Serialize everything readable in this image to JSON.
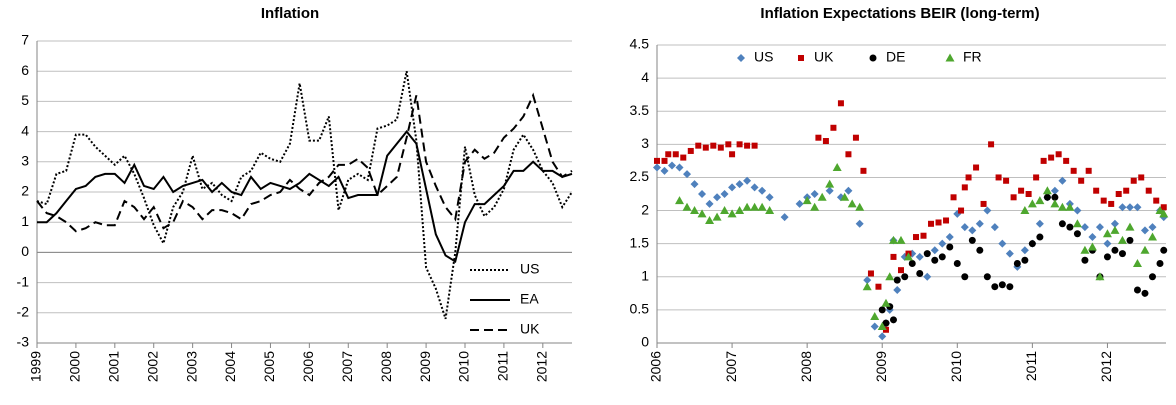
{
  "chart_data": [
    {
      "type": "line",
      "title": "Inflation",
      "x": [
        1999,
        1999.25,
        1999.5,
        1999.75,
        2000,
        2000.25,
        2000.5,
        2000.75,
        2001,
        2001.25,
        2001.5,
        2001.75,
        2002,
        2002.25,
        2002.5,
        2002.75,
        2003,
        2003.25,
        2003.5,
        2003.75,
        2004,
        2004.25,
        2004.5,
        2004.75,
        2005,
        2005.25,
        2005.5,
        2005.75,
        2006,
        2006.25,
        2006.5,
        2006.75,
        2007,
        2007.25,
        2007.5,
        2007.75,
        2008,
        2008.25,
        2008.5,
        2008.75,
        2009,
        2009.25,
        2009.5,
        2009.75,
        2010,
        2010.25,
        2010.5,
        2010.75,
        2011,
        2011.25,
        2011.5,
        2011.75,
        2012,
        2012.25,
        2012.5,
        2012.75
      ],
      "series": [
        {
          "name": "US",
          "color": "#000000",
          "dash": "dotted",
          "values": [
            1.7,
            1.6,
            2.6,
            2.7,
            3.9,
            3.9,
            3.5,
            3.2,
            2.9,
            3.2,
            2.6,
            1.8,
            0.9,
            0.3,
            1.5,
            2.0,
            3.2,
            2.1,
            2.3,
            1.9,
            1.7,
            2.5,
            2.7,
            3.3,
            3.1,
            3.0,
            3.6,
            5.6,
            3.7,
            3.7,
            4.5,
            1.4,
            2.4,
            2.6,
            2.4,
            4.1,
            4.2,
            4.4,
            6.0,
            3.7,
            -0.5,
            -1.2,
            -2.2,
            0.0,
            3.5,
            1.9,
            1.2,
            1.5,
            2.1,
            3.4,
            3.9,
            3.4,
            2.7,
            2.3,
            1.5,
            2.0
          ]
        },
        {
          "name": "EA",
          "color": "#000000",
          "dash": "solid",
          "values": [
            1.0,
            1.0,
            1.3,
            1.7,
            2.1,
            2.2,
            2.5,
            2.6,
            2.6,
            2.3,
            2.9,
            2.2,
            2.1,
            2.5,
            2.0,
            2.2,
            2.3,
            2.4,
            2.0,
            2.3,
            2.0,
            1.9,
            2.5,
            2.1,
            2.3,
            2.2,
            2.1,
            2.3,
            2.6,
            2.4,
            2.2,
            2.5,
            1.8,
            1.9,
            1.9,
            1.9,
            3.2,
            3.6,
            4.0,
            3.6,
            2.1,
            0.6,
            -0.1,
            -0.3,
            1.0,
            1.6,
            1.6,
            1.9,
            2.2,
            2.7,
            2.7,
            3.0,
            2.7,
            2.7,
            2.5,
            2.6
          ]
        },
        {
          "name": "UK",
          "color": "#000000",
          "dash": "dashed",
          "values": [
            1.7,
            1.3,
            1.2,
            1.0,
            0.7,
            0.8,
            1.0,
            0.9,
            0.9,
            1.7,
            1.5,
            1.1,
            1.5,
            0.8,
            1.0,
            1.7,
            1.5,
            1.1,
            1.4,
            1.4,
            1.3,
            1.1,
            1.6,
            1.7,
            1.9,
            2.0,
            2.4,
            2.1,
            1.9,
            2.3,
            2.5,
            2.9,
            2.9,
            3.1,
            2.8,
            1.9,
            2.2,
            2.5,
            3.8,
            5.2,
            3.0,
            2.2,
            1.5,
            1.1,
            3.0,
            3.4,
            3.1,
            3.3,
            3.8,
            4.1,
            4.5,
            5.2,
            4.1,
            3.0,
            2.5,
            2.7
          ]
        }
      ],
      "xlim": [
        1999,
        2012.75
      ],
      "xticks": [
        1999,
        2000,
        2001,
        2002,
        2003,
        2004,
        2005,
        2006,
        2007,
        2008,
        2009,
        2010,
        2011,
        2012
      ],
      "ylim": [
        -3,
        7
      ],
      "yticks": [
        -3,
        -2,
        -1,
        0,
        1,
        2,
        3,
        4,
        5,
        6,
        7
      ],
      "grid": true,
      "legend": "lower right"
    },
    {
      "type": "scatter",
      "title": "Inflation Expectations BEIR (long-term)",
      "series": [
        {
          "name": "US",
          "color": "#4f81bd",
          "marker": "diamond",
          "x": [
            2006.0,
            2006.1,
            2006.2,
            2006.3,
            2006.4,
            2006.5,
            2006.6,
            2006.7,
            2006.8,
            2006.9,
            2007.0,
            2007.1,
            2007.2,
            2007.3,
            2007.4,
            2007.5,
            2007.7,
            2007.9,
            2008.0,
            2008.1,
            2008.3,
            2008.45,
            2008.55,
            2008.7,
            2008.8,
            2008.9,
            2009.0,
            2009.05,
            2009.1,
            2009.15,
            2009.2,
            2009.3,
            2009.4,
            2009.5,
            2009.6,
            2009.7,
            2009.8,
            2009.9,
            2010.0,
            2010.1,
            2010.2,
            2010.3,
            2010.4,
            2010.5,
            2010.6,
            2010.7,
            2010.8,
            2010.9,
            2011.0,
            2011.1,
            2011.2,
            2011.3,
            2011.4,
            2011.5,
            2011.6,
            2011.7,
            2011.8,
            2011.9,
            2012.0,
            2012.1,
            2012.2,
            2012.3,
            2012.4,
            2012.5,
            2012.6,
            2012.7,
            2012.75
          ],
          "values": [
            2.65,
            2.6,
            2.68,
            2.65,
            2.55,
            2.4,
            2.25,
            2.1,
            2.2,
            2.25,
            2.35,
            2.4,
            2.45,
            2.35,
            2.3,
            2.2,
            1.9,
            2.1,
            2.2,
            2.25,
            2.3,
            2.2,
            2.3,
            1.8,
            0.95,
            0.25,
            0.1,
            0.3,
            0.5,
            1.55,
            0.8,
            1.3,
            1.35,
            1.3,
            1.0,
            1.4,
            1.5,
            1.6,
            1.95,
            1.75,
            1.7,
            1.8,
            2.0,
            1.75,
            1.5,
            1.35,
            1.15,
            1.4,
            1.5,
            1.8,
            2.2,
            2.3,
            2.45,
            2.1,
            2.0,
            1.75,
            1.6,
            1.75,
            1.5,
            1.8,
            2.05,
            2.05,
            2.05,
            1.7,
            1.75,
            2.0,
            1.9
          ]
        },
        {
          "name": "UK",
          "color": "#c00000",
          "marker": "square",
          "x": [
            2006.0,
            2006.1,
            2006.15,
            2006.25,
            2006.35,
            2006.45,
            2006.55,
            2006.65,
            2006.75,
            2006.85,
            2006.95,
            2007.0,
            2007.1,
            2007.2,
            2007.3,
            2008.15,
            2008.25,
            2008.35,
            2008.45,
            2008.55,
            2008.65,
            2008.75,
            2008.85,
            2008.95,
            2009.05,
            2009.15,
            2009.25,
            2009.35,
            2009.45,
            2009.55,
            2009.65,
            2009.75,
            2009.85,
            2009.95,
            2010.05,
            2010.1,
            2010.15,
            2010.25,
            2010.35,
            2010.45,
            2010.55,
            2010.65,
            2010.75,
            2010.85,
            2010.95,
            2011.05,
            2011.15,
            2011.25,
            2011.35,
            2011.45,
            2011.55,
            2011.65,
            2011.75,
            2011.85,
            2011.95,
            2012.05,
            2012.15,
            2012.25,
            2012.35,
            2012.45,
            2012.55,
            2012.65,
            2012.75
          ],
          "values": [
            2.75,
            2.75,
            2.85,
            2.85,
            2.8,
            2.9,
            2.98,
            2.95,
            2.98,
            2.95,
            3.0,
            2.85,
            3.0,
            2.98,
            2.98,
            3.1,
            3.05,
            3.25,
            3.62,
            2.85,
            3.1,
            2.6,
            1.05,
            0.85,
            0.2,
            1.3,
            1.1,
            1.35,
            1.6,
            1.62,
            1.8,
            1.82,
            1.85,
            2.2,
            2.0,
            2.35,
            2.5,
            2.65,
            2.1,
            3.0,
            2.5,
            2.45,
            2.2,
            2.3,
            2.25,
            2.5,
            2.75,
            2.8,
            2.85,
            2.75,
            2.6,
            2.45,
            2.6,
            2.3,
            2.15,
            2.1,
            2.25,
            2.3,
            2.45,
            2.5,
            2.3,
            2.15,
            2.05
          ]
        },
        {
          "name": "DE",
          "color": "#000000",
          "marker": "circle",
          "x": [
            2009.0,
            2009.05,
            2009.1,
            2009.15,
            2009.2,
            2009.3,
            2009.4,
            2009.5,
            2009.6,
            2009.7,
            2009.8,
            2009.9,
            2010.0,
            2010.1,
            2010.2,
            2010.3,
            2010.4,
            2010.5,
            2010.6,
            2010.7,
            2010.8,
            2010.9,
            2011.0,
            2011.1,
            2011.2,
            2011.3,
            2011.4,
            2011.5,
            2011.6,
            2011.7,
            2011.8,
            2011.9,
            2012.0,
            2012.1,
            2012.2,
            2012.3,
            2012.4,
            2012.5,
            2012.6,
            2012.7,
            2012.75
          ],
          "values": [
            0.5,
            0.3,
            0.55,
            0.35,
            0.95,
            1.0,
            1.2,
            1.05,
            1.35,
            1.25,
            1.3,
            1.45,
            1.2,
            1.0,
            1.55,
            1.4,
            1.0,
            0.85,
            0.88,
            0.85,
            1.2,
            1.25,
            1.5,
            1.6,
            2.2,
            2.2,
            1.8,
            1.75,
            1.65,
            1.25,
            1.4,
            1.0,
            1.3,
            1.4,
            1.35,
            1.55,
            0.8,
            0.75,
            1.0,
            1.2,
            1.4
          ]
        },
        {
          "name": "FR",
          "color": "#4ea72e",
          "marker": "triangle",
          "x": [
            2006.3,
            2006.4,
            2006.5,
            2006.6,
            2006.7,
            2006.8,
            2006.9,
            2007.0,
            2007.1,
            2007.2,
            2007.3,
            2007.4,
            2007.5,
            2008.0,
            2008.1,
            2008.2,
            2008.3,
            2008.4,
            2008.5,
            2008.6,
            2008.7,
            2008.8,
            2008.9,
            2009.0,
            2009.05,
            2009.1,
            2009.15,
            2009.25,
            2009.35,
            2010.9,
            2011.0,
            2011.1,
            2011.2,
            2011.3,
            2011.4,
            2011.5,
            2011.6,
            2011.7,
            2011.8,
            2011.9,
            2012.0,
            2012.1,
            2012.2,
            2012.3,
            2012.4,
            2012.5,
            2012.6,
            2012.7,
            2012.75
          ],
          "values": [
            2.15,
            2.05,
            2.0,
            1.95,
            1.85,
            1.9,
            2.0,
            1.95,
            2.0,
            2.05,
            2.05,
            2.05,
            2.0,
            2.15,
            2.05,
            2.2,
            2.4,
            2.65,
            2.2,
            2.1,
            2.05,
            0.85,
            0.4,
            0.25,
            0.6,
            1.0,
            1.55,
            1.55,
            1.3,
            2.0,
            2.1,
            2.15,
            2.3,
            2.1,
            2.05,
            2.05,
            1.8,
            1.4,
            1.45,
            1.0,
            1.65,
            1.7,
            1.55,
            1.75,
            1.2,
            1.4,
            1.6,
            2.0,
            1.95
          ]
        }
      ],
      "xlim": [
        2006,
        2012.78
      ],
      "xticks": [
        2006,
        2007,
        2008,
        2009,
        2010,
        2011,
        2012
      ],
      "ylim": [
        0,
        4.5
      ],
      "yticks": [
        0,
        0.5,
        1,
        1.5,
        2,
        2.5,
        3,
        3.5,
        4,
        4.5
      ],
      "grid": true,
      "legend": "upper left"
    }
  ]
}
